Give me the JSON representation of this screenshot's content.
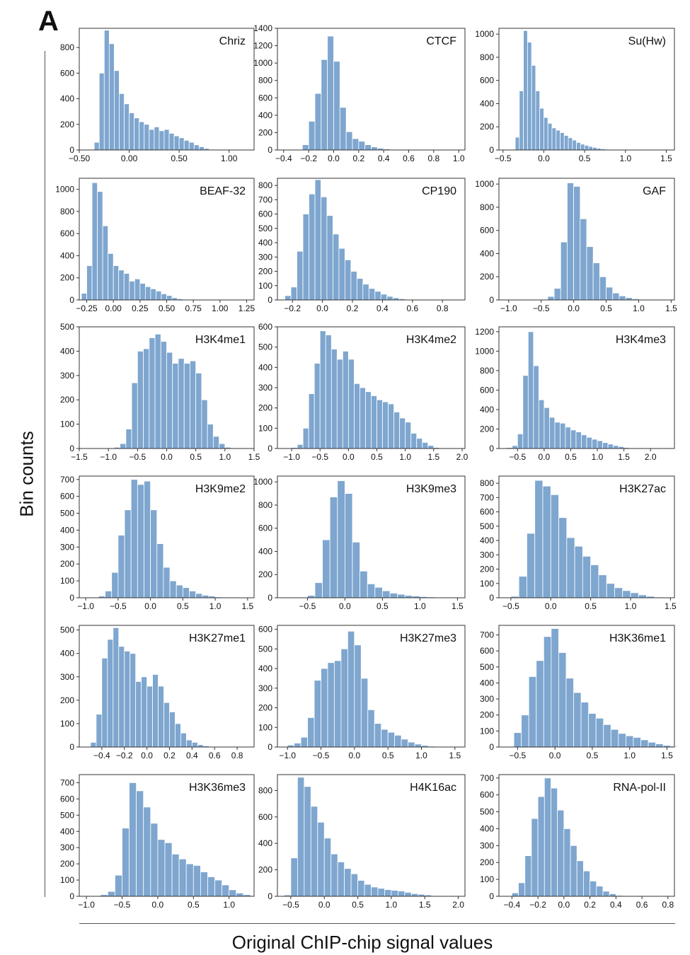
{
  "figure": {
    "panel_label": "A",
    "ylabel": "Bin counts",
    "xlabel": "Original ChIP-chip signal values"
  },
  "style": {
    "bar_color": "#7ea6cf",
    "bar_edge": "#ffffff",
    "axis_color": "#333333"
  },
  "chart_data": [
    {
      "type": "bar",
      "title": "Chriz",
      "bin_start": -0.35,
      "bin_width": 0.05,
      "xlim": [
        -0.5,
        1.25
      ],
      "ylim": [
        0,
        950
      ],
      "xticks": [
        -0.5,
        0,
        0.5,
        1
      ],
      "xtick_labels": [
        "−0.50",
        "0.00",
        "0.50",
        "1.00"
      ],
      "yticks": [
        0,
        200,
        400,
        600,
        800
      ],
      "values": [
        60,
        600,
        935,
        830,
        620,
        440,
        360,
        290,
        250,
        220,
        200,
        160,
        180,
        150,
        160,
        130,
        110,
        95,
        75,
        60,
        40,
        25,
        12
      ]
    },
    {
      "type": "bar",
      "title": "CTCF",
      "bin_start": -0.25,
      "bin_width": 0.05,
      "xlim": [
        -0.45,
        1.05
      ],
      "ylim": [
        0,
        1400
      ],
      "xticks": [
        -0.4,
        -0.2,
        0,
        0.2,
        0.4,
        0.6,
        0.8,
        1.0
      ],
      "xtick_labels": [
        "−0.4",
        "−0.2",
        "0.0",
        "0.2",
        "0.4",
        "0.6",
        "0.8",
        "1.0"
      ],
      "yticks": [
        0,
        200,
        400,
        600,
        800,
        1000,
        1200,
        1400
      ],
      "values": [
        60,
        330,
        650,
        1040,
        1310,
        1020,
        490,
        210,
        130,
        100,
        60,
        35,
        20,
        12,
        6,
        5,
        3,
        2,
        1,
        1
      ]
    },
    {
      "type": "bar",
      "title": "Su(Hw)",
      "bin_start": -0.35,
      "bin_width": 0.05,
      "xlim": [
        -0.55,
        1.6
      ],
      "ylim": [
        0,
        1050
      ],
      "xticks": [
        -0.5,
        0,
        0.5,
        1.0,
        1.5
      ],
      "xtick_labels": [
        "−0.5",
        "0.0",
        "0.5",
        "1.0",
        "1.5"
      ],
      "yticks": [
        0,
        200,
        400,
        600,
        800,
        1000
      ],
      "values": [
        110,
        510,
        1030,
        930,
        730,
        510,
        360,
        280,
        230,
        190,
        170,
        150,
        125,
        105,
        85,
        65,
        50,
        40,
        30,
        22,
        15,
        10,
        6,
        4
      ]
    },
    {
      "type": "bar",
      "title": "BEAF-32",
      "bin_start": -0.3,
      "bin_width": 0.05,
      "xlim": [
        -0.32,
        1.32
      ],
      "ylim": [
        0,
        1100
      ],
      "xticks": [
        -0.25,
        0,
        0.25,
        0.5,
        0.75,
        1.0,
        1.25
      ],
      "xtick_labels": [
        "−0.25",
        "0.00",
        "0.25",
        "0.50",
        "0.75",
        "1.00",
        "1.25"
      ],
      "yticks": [
        0,
        200,
        400,
        600,
        800,
        1000
      ],
      "values": [
        60,
        310,
        1060,
        980,
        670,
        420,
        310,
        270,
        240,
        170,
        190,
        150,
        120,
        100,
        80,
        55,
        40,
        20,
        10
      ]
    },
    {
      "type": "bar",
      "title": "CP190",
      "bin_start": -0.25,
      "bin_width": 0.04,
      "xlim": [
        -0.3,
        0.95
      ],
      "ylim": [
        0,
        850
      ],
      "xticks": [
        -0.2,
        0,
        0.2,
        0.4,
        0.6,
        0.8
      ],
      "xtick_labels": [
        "−0.2",
        "0.0",
        "0.2",
        "0.4",
        "0.6",
        "0.8"
      ],
      "yticks": [
        0,
        100,
        200,
        300,
        400,
        500,
        600,
        700,
        800
      ],
      "values": [
        30,
        90,
        340,
        600,
        740,
        840,
        720,
        590,
        460,
        360,
        280,
        200,
        150,
        110,
        80,
        60,
        40,
        25,
        15,
        8
      ]
    },
    {
      "type": "bar",
      "title": "GAF",
      "bin_start": -0.4,
      "bin_width": 0.1,
      "xlim": [
        -1.15,
        1.55
      ],
      "ylim": [
        0,
        1050
      ],
      "xticks": [
        -1,
        -0.5,
        0,
        0.5,
        1,
        1.5
      ],
      "xtick_labels": [
        "−1.0",
        "−0.5",
        "0.0",
        "0.5",
        "1.0",
        "1.5"
      ],
      "yticks": [
        0,
        200,
        400,
        600,
        800,
        1000
      ],
      "values": [
        30,
        100,
        500,
        1010,
        980,
        700,
        460,
        320,
        200,
        110,
        60,
        35,
        20,
        10,
        5,
        2
      ]
    },
    {
      "type": "bar",
      "title": "H3K4me1",
      "bin_start": -0.9,
      "bin_width": 0.1,
      "xlim": [
        -1.5,
        1.5
      ],
      "ylim": [
        0,
        500
      ],
      "xticks": [
        -1.5,
        -1,
        -0.5,
        0,
        0.5,
        1,
        1.5
      ],
      "xtick_labels": [
        "−1.5",
        "−1.0",
        "−0.5",
        "0.0",
        "0.5",
        "1.0",
        "1.5"
      ],
      "yticks": [
        0,
        100,
        200,
        300,
        400,
        500
      ],
      "values": [
        5,
        20,
        80,
        270,
        400,
        410,
        455,
        470,
        440,
        395,
        350,
        370,
        350,
        360,
        310,
        200,
        100,
        50,
        20,
        5
      ]
    },
    {
      "type": "bar",
      "title": "H3K4me2",
      "bin_start": -1.0,
      "bin_width": 0.1,
      "xlim": [
        -1.25,
        2.05
      ],
      "ylim": [
        0,
        600
      ],
      "xticks": [
        -1,
        -0.5,
        0,
        0.5,
        1,
        1.5,
        2
      ],
      "xtick_labels": [
        "−1.0",
        "−0.5",
        "0.0",
        "0.5",
        "1.0",
        "1.5",
        "2.0"
      ],
      "yticks": [
        0,
        100,
        200,
        300,
        400,
        500,
        600
      ],
      "values": [
        5,
        20,
        100,
        270,
        420,
        580,
        560,
        490,
        440,
        480,
        440,
        320,
        300,
        280,
        260,
        240,
        230,
        220,
        180,
        150,
        130,
        75,
        50,
        30,
        15,
        5
      ]
    },
    {
      "type": "bar",
      "title": "H3K4me3",
      "bin_start": -0.7,
      "bin_width": 0.1,
      "xlim": [
        -0.85,
        2.45
      ],
      "ylim": [
        0,
        1250
      ],
      "xticks": [
        -0.5,
        0,
        0.5,
        1,
        1.5,
        2
      ],
      "xtick_labels": [
        "−0.5",
        "0.0",
        "0.5",
        "1.0",
        "1.5",
        "2.0"
      ],
      "yticks": [
        0,
        200,
        400,
        600,
        800,
        1000,
        1200
      ],
      "values": [
        10,
        30,
        150,
        750,
        1200,
        850,
        500,
        420,
        320,
        270,
        260,
        220,
        190,
        170,
        140,
        115,
        95,
        80,
        60,
        45,
        30,
        20,
        10,
        5,
        3
      ]
    },
    {
      "type": "bar",
      "title": "H3K9me2",
      "bin_start": -0.8,
      "bin_width": 0.1,
      "xlim": [
        -1.1,
        1.6
      ],
      "ylim": [
        0,
        720
      ],
      "xticks": [
        -1,
        -0.5,
        0,
        0.5,
        1,
        1.5
      ],
      "xtick_labels": [
        "−1.0",
        "−0.5",
        "0.0",
        "0.5",
        "1.0",
        "1.5"
      ],
      "yticks": [
        0,
        100,
        200,
        300,
        400,
        500,
        600,
        700
      ],
      "values": [
        10,
        40,
        150,
        370,
        520,
        700,
        670,
        690,
        520,
        320,
        180,
        100,
        75,
        60,
        40,
        25,
        15,
        10,
        5,
        3,
        2
      ]
    },
    {
      "type": "bar",
      "title": "H3K9me3",
      "bin_start": -0.5,
      "bin_width": 0.1,
      "xlim": [
        -0.9,
        1.6
      ],
      "ylim": [
        0,
        1050
      ],
      "xticks": [
        -0.5,
        0,
        0.5,
        1,
        1.5
      ],
      "xtick_labels": [
        "−0.5",
        "0.0",
        "0.5",
        "1.0",
        "1.5"
      ],
      "yticks": [
        0,
        200,
        400,
        600,
        800,
        1000
      ],
      "values": [
        20,
        130,
        500,
        870,
        1010,
        900,
        480,
        230,
        120,
        90,
        60,
        40,
        30,
        20,
        15,
        10,
        7,
        5,
        3,
        2
      ]
    },
    {
      "type": "bar",
      "title": "H3K27ac",
      "bin_start": -0.5,
      "bin_width": 0.1,
      "xlim": [
        -0.65,
        1.55
      ],
      "ylim": [
        0,
        850
      ],
      "xticks": [
        -0.5,
        0,
        0.5,
        1,
        1.5
      ],
      "xtick_labels": [
        "−0.5",
        "0.0",
        "0.5",
        "1.0",
        "1.5"
      ],
      "yticks": [
        0,
        100,
        200,
        300,
        400,
        500,
        600,
        700,
        800
      ],
      "values": [
        10,
        150,
        450,
        820,
        780,
        720,
        560,
        420,
        360,
        290,
        230,
        160,
        100,
        70,
        50,
        35,
        20,
        10,
        5
      ]
    },
    {
      "type": "bar",
      "title": "H3K27me1",
      "bin_start": -0.5,
      "bin_width": 0.05,
      "xlim": [
        -0.6,
        0.95
      ],
      "ylim": [
        0,
        520
      ],
      "xticks": [
        -0.4,
        -0.2,
        0,
        0.2,
        0.4,
        0.6,
        0.8
      ],
      "xtick_labels": [
        "−0.4",
        "−0.2",
        "0.0",
        "0.2",
        "0.4",
        "0.6",
        "0.8"
      ],
      "yticks": [
        0,
        100,
        200,
        300,
        400,
        500
      ],
      "values": [
        20,
        140,
        380,
        460,
        510,
        430,
        410,
        400,
        280,
        300,
        260,
        310,
        260,
        190,
        150,
        100,
        60,
        30,
        20,
        10,
        5
      ]
    },
    {
      "type": "bar",
      "title": "H3K27me3",
      "bin_start": -1.0,
      "bin_width": 0.1,
      "xlim": [
        -1.15,
        1.65
      ],
      "ylim": [
        0,
        620
      ],
      "xticks": [
        -1,
        -0.5,
        0,
        0.5,
        1,
        1.5
      ],
      "xtick_labels": [
        "−1.0",
        "−0.5",
        "0.0",
        "0.5",
        "1.0",
        "1.5"
      ],
      "yticks": [
        0,
        100,
        200,
        300,
        400,
        500,
        600
      ],
      "values": [
        10,
        20,
        50,
        150,
        340,
        400,
        430,
        440,
        500,
        590,
        520,
        350,
        190,
        120,
        90,
        75,
        60,
        40,
        25,
        15,
        8,
        4
      ]
    },
    {
      "type": "bar",
      "title": "H3K36me1",
      "bin_start": -0.55,
      "bin_width": 0.1,
      "xlim": [
        -0.75,
        1.6
      ],
      "ylim": [
        0,
        760
      ],
      "xticks": [
        -0.5,
        0,
        0.5,
        1,
        1.5
      ],
      "xtick_labels": [
        "−0.5",
        "0.0",
        "0.5",
        "1.0",
        "1.5"
      ],
      "yticks": [
        0,
        100,
        200,
        300,
        400,
        500,
        600,
        700
      ],
      "values": [
        90,
        200,
        440,
        540,
        690,
        740,
        590,
        430,
        340,
        280,
        210,
        180,
        140,
        110,
        85,
        70,
        60,
        45,
        30,
        20,
        10,
        5
      ]
    },
    {
      "type": "bar",
      "title": "H3K36me3",
      "bin_start": -0.8,
      "bin_width": 0.1,
      "xlim": [
        -1.1,
        1.35
      ],
      "ylim": [
        0,
        750
      ],
      "xticks": [
        -1,
        -0.5,
        0,
        0.5,
        1
      ],
      "xtick_labels": [
        "−1.0",
        "−0.5",
        "0.0",
        "0.5",
        "1.0"
      ],
      "yticks": [
        0,
        100,
        200,
        300,
        400,
        500,
        600,
        700
      ],
      "values": [
        10,
        30,
        130,
        420,
        700,
        650,
        550,
        450,
        350,
        330,
        260,
        230,
        200,
        190,
        150,
        120,
        100,
        70,
        40,
        20,
        10
      ]
    },
    {
      "type": "bar",
      "title": "H4K16ac",
      "bin_start": -0.6,
      "bin_width": 0.1,
      "xlim": [
        -0.7,
        2.1
      ],
      "ylim": [
        0,
        920
      ],
      "xticks": [
        -0.5,
        0,
        0.5,
        1,
        1.5,
        2
      ],
      "xtick_labels": [
        "−0.5",
        "0.0",
        "0.5",
        "1.0",
        "1.5",
        "2.0"
      ],
      "yticks": [
        0,
        200,
        400,
        600,
        800
      ],
      "values": [
        10,
        290,
        900,
        830,
        680,
        560,
        440,
        320,
        260,
        210,
        170,
        120,
        90,
        70,
        60,
        50,
        45,
        40,
        30,
        20,
        15,
        10,
        5
      ]
    },
    {
      "type": "bar",
      "title": "RNA-pol-II",
      "bin_start": -0.4,
      "bin_width": 0.05,
      "xlim": [
        -0.5,
        0.85
      ],
      "ylim": [
        0,
        720
      ],
      "xticks": [
        -0.4,
        -0.2,
        0,
        0.2,
        0.4,
        0.6,
        0.8
      ],
      "xtick_labels": [
        "−0.4",
        "−0.2",
        "0.0",
        "0.2",
        "0.4",
        "0.6",
        "0.8"
      ],
      "yticks": [
        0,
        100,
        200,
        300,
        400,
        500,
        600,
        700
      ],
      "values": [
        20,
        80,
        240,
        460,
        590,
        700,
        640,
        510,
        400,
        300,
        210,
        150,
        90,
        60,
        30,
        15,
        5,
        2
      ]
    }
  ]
}
